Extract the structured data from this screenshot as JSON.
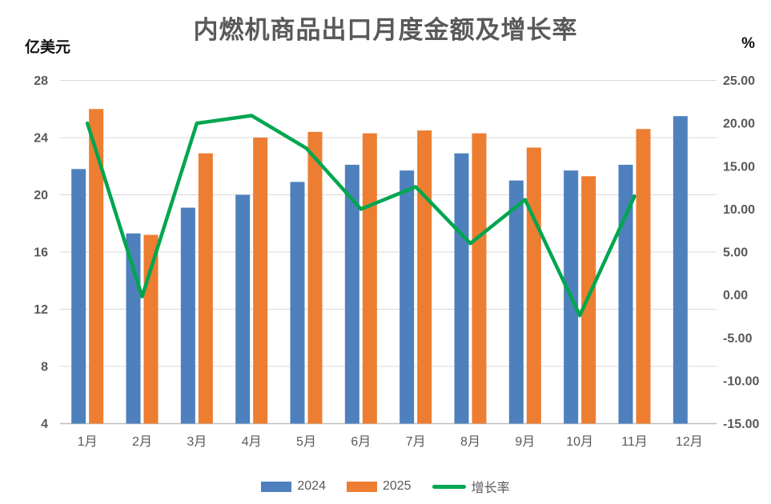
{
  "chart_data": {
    "type": "combo-bar-line",
    "title": "内燃机商品出口月度金额及增长率",
    "left_axis": {
      "unit": "亿美元",
      "min": 4,
      "max": 28,
      "step": 4,
      "ticks": [
        "28",
        "24",
        "20",
        "16",
        "12",
        "8",
        "4"
      ]
    },
    "right_axis": {
      "unit": "%",
      "min": -15,
      "max": 25,
      "step": 5,
      "ticks": [
        "25.00",
        "20.00",
        "15.00",
        "10.00",
        "5.00",
        "0.00",
        "-5.00",
        "-10.00",
        "-15.00"
      ]
    },
    "categories": [
      "1月",
      "2月",
      "3月",
      "4月",
      "5月",
      "6月",
      "7月",
      "8月",
      "9月",
      "10月",
      "11月",
      "12月"
    ],
    "series": [
      {
        "name": "2024",
        "type": "bar",
        "axis": "left",
        "color": "#4E80BD",
        "values": [
          21.8,
          17.3,
          19.1,
          20.0,
          20.9,
          22.1,
          21.7,
          22.9,
          21.0,
          21.7,
          22.1,
          25.5
        ]
      },
      {
        "name": "2025",
        "type": "bar",
        "axis": "left",
        "color": "#ED7D31",
        "values": [
          26.0,
          17.2,
          22.9,
          24.0,
          24.4,
          24.3,
          24.5,
          24.3,
          23.3,
          21.3,
          24.6,
          null
        ]
      },
      {
        "name": "增长率",
        "type": "line",
        "axis": "right",
        "color": "#00A64F",
        "values": [
          20.0,
          -0.2,
          20.0,
          20.9,
          17.1,
          10.0,
          12.6,
          6.0,
          11.1,
          -2.4,
          11.5,
          null
        ]
      }
    ],
    "grid": true,
    "legend_position": "bottom",
    "colors": {
      "gridline": "#D9D9D9",
      "axis_line": "#BFBFBF",
      "tick_label": "#595959",
      "title": "#595959"
    }
  }
}
